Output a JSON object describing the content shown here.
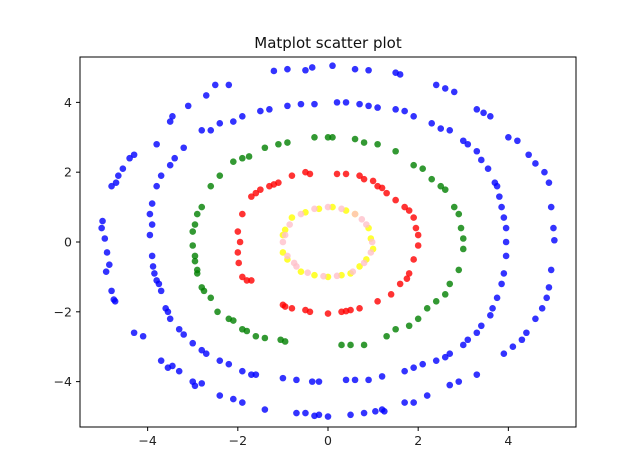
{
  "chart_data": {
    "type": "scatter",
    "title": "Matplot scatter plot",
    "xlabel": "",
    "ylabel": "",
    "xlim": [
      -5.5,
      5.5
    ],
    "ylim": [
      -5.3,
      5.3
    ],
    "xticks": [
      -4,
      -2,
      0,
      2,
      4
    ],
    "yticks": [
      -4,
      -2,
      0,
      2,
      4
    ],
    "xtick_labels": [
      "−4",
      "−2",
      "0",
      "2",
      "4"
    ],
    "ytick_labels": [
      "−4",
      "−2",
      "0",
      "2",
      "4"
    ],
    "grid": false,
    "legend": false,
    "series": [
      {
        "color": "#0000ff",
        "alpha": 0.8,
        "points": [
          [
            -5.0,
            0.6
          ],
          [
            -4.95,
            0.1
          ],
          [
            -4.9,
            -0.3
          ],
          [
            -4.85,
            -0.65
          ],
          [
            -4.8,
            -1.4
          ],
          [
            -4.72,
            -1.7
          ],
          [
            -4.92,
            -0.85
          ],
          [
            -5.02,
            0.4
          ],
          [
            -4.8,
            1.6
          ],
          [
            -4.7,
            1.7
          ],
          [
            -4.65,
            1.9
          ],
          [
            -4.55,
            2.1
          ],
          [
            -4.4,
            2.4
          ],
          [
            -4.3,
            2.5
          ],
          [
            -3.8,
            2.8
          ],
          [
            -3.5,
            3.45
          ],
          [
            -3.45,
            3.6
          ],
          [
            -3.1,
            3.9
          ],
          [
            -2.7,
            4.2
          ],
          [
            -2.5,
            4.5
          ],
          [
            -2.2,
            4.5
          ],
          [
            -1.2,
            4.9
          ],
          [
            -0.9,
            4.95
          ],
          [
            -0.5,
            4.92
          ],
          [
            -0.35,
            5.0
          ],
          [
            0.1,
            5.05
          ],
          [
            0.6,
            4.95
          ],
          [
            0.9,
            4.92
          ],
          [
            1.5,
            4.85
          ],
          [
            1.6,
            4.8
          ],
          [
            2.4,
            4.5
          ],
          [
            2.6,
            4.4
          ],
          [
            2.8,
            4.3
          ],
          [
            3.3,
            3.8
          ],
          [
            3.45,
            3.7
          ],
          [
            3.6,
            3.6
          ],
          [
            4.0,
            3.0
          ],
          [
            4.2,
            2.9
          ],
          [
            4.45,
            2.5
          ],
          [
            4.6,
            2.25
          ],
          [
            4.8,
            2.0
          ],
          [
            4.9,
            1.7
          ],
          [
            4.95,
            1.0
          ],
          [
            5.0,
            0.4
          ],
          [
            5.02,
            0.05
          ],
          [
            4.95,
            -0.8
          ],
          [
            4.9,
            -1.3
          ],
          [
            4.85,
            -1.6
          ],
          [
            4.75,
            -1.9
          ],
          [
            4.6,
            -2.2
          ],
          [
            4.4,
            -2.6
          ],
          [
            4.3,
            -2.8
          ],
          [
            4.1,
            -3.0
          ],
          [
            3.9,
            -3.2
          ],
          [
            3.3,
            -3.8
          ],
          [
            2.9,
            -4.0
          ],
          [
            2.7,
            -4.1
          ],
          [
            2.2,
            -4.4
          ],
          [
            1.9,
            -4.6
          ],
          [
            1.7,
            -4.6
          ],
          [
            1.2,
            -4.8
          ],
          [
            1.05,
            -4.85
          ],
          [
            0.8,
            -4.9
          ],
          [
            0.5,
            -4.95
          ],
          [
            0.0,
            -5.0
          ],
          [
            -0.2,
            -4.95
          ],
          [
            -0.5,
            -4.9
          ],
          [
            -0.7,
            -4.9
          ],
          [
            -1.4,
            -4.8
          ],
          [
            -1.9,
            -4.6
          ],
          [
            -2.1,
            -4.5
          ],
          [
            -2.4,
            -4.4
          ],
          [
            -2.8,
            -4.05
          ],
          [
            -3.0,
            -4.0
          ],
          [
            -3.3,
            -3.7
          ],
          [
            -3.55,
            -3.6
          ],
          [
            -3.7,
            -3.4
          ],
          [
            -4.1,
            -2.7
          ],
          [
            -4.3,
            -2.6
          ],
          [
            -4.75,
            -1.65
          ],
          [
            -3.45,
            -3.55
          ],
          [
            -0.3,
            -4.98
          ],
          [
            1.25,
            -4.85
          ],
          [
            -2.95,
            -4.12
          ]
        ]
      },
      {
        "color": "#0000ff",
        "alpha": 0.8,
        "points": [
          [
            -3.9,
            0.5
          ],
          [
            -3.95,
            0.2
          ],
          [
            -3.9,
            -0.4
          ],
          [
            -3.88,
            -0.7
          ],
          [
            -3.85,
            -0.9
          ],
          [
            -3.8,
            -1.1
          ],
          [
            -3.75,
            -1.2
          ],
          [
            -3.7,
            -1.4
          ],
          [
            -3.6,
            -1.9
          ],
          [
            -3.55,
            -2.0
          ],
          [
            -3.5,
            -2.2
          ],
          [
            -3.3,
            -2.5
          ],
          [
            -3.2,
            -2.65
          ],
          [
            -3.0,
            -2.9
          ],
          [
            -2.8,
            -3.1
          ],
          [
            -2.7,
            -3.2
          ],
          [
            -2.4,
            -3.4
          ],
          [
            -2.2,
            -3.5
          ],
          [
            -1.9,
            -3.7
          ],
          [
            -1.7,
            -3.8
          ],
          [
            -1.6,
            -3.8
          ],
          [
            -1.0,
            -3.9
          ],
          [
            -0.7,
            -3.95
          ],
          [
            -0.35,
            -4.0
          ],
          [
            -0.2,
            -4.0
          ],
          [
            0.4,
            -3.95
          ],
          [
            0.6,
            -3.95
          ],
          [
            0.9,
            -3.95
          ],
          [
            1.2,
            -3.85
          ],
          [
            1.7,
            -3.7
          ],
          [
            1.9,
            -3.6
          ],
          [
            2.1,
            -3.5
          ],
          [
            2.4,
            -3.4
          ],
          [
            2.6,
            -3.3
          ],
          [
            2.7,
            -3.2
          ],
          [
            3.0,
            -2.95
          ],
          [
            3.1,
            -2.8
          ],
          [
            3.3,
            -2.6
          ],
          [
            3.4,
            -2.4
          ],
          [
            3.6,
            -2.1
          ],
          [
            3.65,
            -1.9
          ],
          [
            3.75,
            -1.6
          ],
          [
            3.85,
            -1.2
          ],
          [
            3.9,
            -0.9
          ],
          [
            3.95,
            -0.4
          ],
          [
            3.95,
            0.0
          ],
          [
            3.95,
            0.4
          ],
          [
            3.9,
            0.7
          ],
          [
            3.85,
            1.0
          ],
          [
            3.8,
            1.3
          ],
          [
            3.75,
            1.6
          ],
          [
            3.7,
            1.7
          ],
          [
            3.55,
            2.1
          ],
          [
            3.4,
            2.35
          ],
          [
            3.3,
            2.6
          ],
          [
            3.1,
            2.8
          ],
          [
            3.0,
            2.9
          ],
          [
            2.7,
            3.2
          ],
          [
            2.5,
            3.25
          ],
          [
            2.3,
            3.4
          ],
          [
            1.9,
            3.6
          ],
          [
            1.7,
            3.75
          ],
          [
            1.5,
            3.8
          ],
          [
            1.1,
            3.85
          ],
          [
            0.9,
            3.9
          ],
          [
            0.7,
            3.95
          ],
          [
            0.4,
            4.0
          ],
          [
            0.2,
            4.0
          ],
          [
            -0.3,
            3.95
          ],
          [
            -0.6,
            3.95
          ],
          [
            -0.9,
            3.9
          ],
          [
            -1.3,
            3.8
          ],
          [
            -1.5,
            3.75
          ],
          [
            -1.9,
            3.6
          ],
          [
            -2.1,
            3.45
          ],
          [
            -2.4,
            3.4
          ],
          [
            -2.6,
            3.2
          ],
          [
            -2.8,
            3.2
          ],
          [
            -3.2,
            2.7
          ],
          [
            -3.4,
            2.4
          ],
          [
            -3.5,
            2.2
          ],
          [
            -3.7,
            1.9
          ],
          [
            -3.8,
            1.6
          ],
          [
            -3.9,
            1.1
          ],
          [
            -3.95,
            0.8
          ]
        ]
      },
      {
        "color": "#008000",
        "alpha": 0.8,
        "points": [
          [
            -2.95,
            0.5
          ],
          [
            -3.0,
            0.3
          ],
          [
            -3.0,
            -0.1
          ],
          [
            -2.95,
            -0.4
          ],
          [
            -2.9,
            -0.8
          ],
          [
            -2.9,
            -0.9
          ],
          [
            -2.8,
            -1.3
          ],
          [
            -2.75,
            -1.4
          ],
          [
            -2.6,
            -1.6
          ],
          [
            -2.45,
            -2.0
          ],
          [
            -2.2,
            -2.2
          ],
          [
            -2.1,
            -2.25
          ],
          [
            -1.9,
            -2.5
          ],
          [
            -1.8,
            -2.55
          ],
          [
            -1.6,
            -2.7
          ],
          [
            -1.4,
            -2.75
          ],
          [
            -1.05,
            -2.8
          ],
          [
            -0.95,
            -2.85
          ],
          [
            0.3,
            -2.95
          ],
          [
            0.5,
            -2.95
          ],
          [
            0.8,
            -2.95
          ],
          [
            1.3,
            -2.7
          ],
          [
            1.5,
            -2.5
          ],
          [
            1.8,
            -2.4
          ],
          [
            2.0,
            -2.2
          ],
          [
            2.2,
            -1.9
          ],
          [
            2.4,
            -1.7
          ],
          [
            2.6,
            -1.5
          ],
          [
            2.7,
            -1.2
          ],
          [
            2.9,
            -0.8
          ],
          [
            3.0,
            -0.2
          ],
          [
            3.0,
            0.1
          ],
          [
            2.95,
            0.4
          ],
          [
            2.9,
            0.8
          ],
          [
            2.8,
            1.0
          ],
          [
            2.6,
            1.5
          ],
          [
            2.5,
            1.6
          ],
          [
            2.3,
            1.8
          ],
          [
            2.1,
            2.1
          ],
          [
            1.9,
            2.2
          ],
          [
            1.5,
            2.6
          ],
          [
            1.1,
            2.8
          ],
          [
            0.8,
            2.85
          ],
          [
            0.6,
            2.95
          ],
          [
            0.0,
            3.0
          ],
          [
            0.1,
            3.0
          ],
          [
            -0.3,
            3.0
          ],
          [
            -0.9,
            2.85
          ],
          [
            -1.1,
            2.8
          ],
          [
            -1.4,
            2.7
          ],
          [
            -1.9,
            2.4
          ],
          [
            -2.1,
            2.3
          ],
          [
            -2.4,
            1.9
          ],
          [
            -2.6,
            1.6
          ],
          [
            -2.8,
            1.0
          ],
          [
            -2.9,
            0.8
          ],
          [
            -2.95,
            -0.55
          ],
          [
            -1.75,
            2.45
          ]
        ]
      },
      {
        "color": "#ff0000",
        "alpha": 0.8,
        "points": [
          [
            -2.0,
            0.3
          ],
          [
            -1.95,
            0.0
          ],
          [
            -2.0,
            -0.3
          ],
          [
            -1.98,
            -0.6
          ],
          [
            -1.9,
            -1.0
          ],
          [
            -1.8,
            -1.1
          ],
          [
            -1.7,
            -1.1
          ],
          [
            -1.0,
            -1.8
          ],
          [
            -0.8,
            -1.9
          ],
          [
            -0.5,
            -1.95
          ],
          [
            -0.4,
            -2.0
          ],
          [
            0.0,
            -2.05
          ],
          [
            0.3,
            -2.0
          ],
          [
            0.5,
            -1.95
          ],
          [
            0.7,
            -1.9
          ],
          [
            1.1,
            -1.7
          ],
          [
            1.4,
            -1.5
          ],
          [
            1.6,
            -1.2
          ],
          [
            1.8,
            -0.9
          ],
          [
            1.9,
            -0.5
          ],
          [
            2.0,
            -0.1
          ],
          [
            2.0,
            0.2
          ],
          [
            1.95,
            0.4
          ],
          [
            1.9,
            0.7
          ],
          [
            1.8,
            0.9
          ],
          [
            1.7,
            1.0
          ],
          [
            1.5,
            1.2
          ],
          [
            1.3,
            1.4
          ],
          [
            1.1,
            1.6
          ],
          [
            0.8,
            1.8
          ],
          [
            0.7,
            1.9
          ],
          [
            0.4,
            1.95
          ],
          [
            0.2,
            1.95
          ],
          [
            -0.4,
            1.95
          ],
          [
            -0.5,
            2.0
          ],
          [
            -0.8,
            1.9
          ],
          [
            -1.1,
            1.7
          ],
          [
            -1.3,
            1.6
          ],
          [
            -1.5,
            1.5
          ],
          [
            -1.7,
            1.3
          ],
          [
            -1.9,
            0.8
          ],
          [
            -1.6,
            1.4
          ],
          [
            -1.2,
            1.65
          ],
          [
            1.2,
            1.55
          ],
          [
            1.75,
            -1.05
          ],
          [
            -0.95,
            -1.85
          ],
          [
            0.4,
            -1.98
          ],
          [
            1.0,
            1.75
          ]
        ]
      },
      {
        "color": "#ffff00",
        "alpha": 0.8,
        "points": [
          [
            -1.0,
            -0.3
          ],
          [
            -1.0,
            0.2
          ],
          [
            -0.95,
            0.35
          ],
          [
            -0.9,
            -0.5
          ],
          [
            -0.8,
            0.7
          ],
          [
            -0.6,
            -0.85
          ],
          [
            -0.5,
            0.85
          ],
          [
            -0.3,
            -0.95
          ],
          [
            -0.2,
            0.95
          ],
          [
            0.0,
            -1.0
          ],
          [
            0.1,
            1.0
          ],
          [
            0.3,
            -0.95
          ],
          [
            0.4,
            0.9
          ],
          [
            0.6,
            0.8
          ],
          [
            0.7,
            -0.7
          ],
          [
            0.85,
            -0.5
          ],
          [
            0.9,
            0.4
          ],
          [
            0.95,
            0.1
          ],
          [
            1.0,
            -0.2
          ],
          [
            0.5,
            -0.9
          ]
        ]
      },
      {
        "color": "#ffc0cb",
        "alpha": 0.8,
        "points": [
          [
            -0.95,
            0.2
          ],
          [
            -0.9,
            -0.4
          ],
          [
            -0.85,
            0.5
          ],
          [
            -0.7,
            -0.7
          ],
          [
            -0.6,
            0.8
          ],
          [
            -0.45,
            -0.88
          ],
          [
            -0.3,
            0.95
          ],
          [
            -0.1,
            -0.98
          ],
          [
            0.0,
            1.0
          ],
          [
            0.2,
            -0.97
          ],
          [
            0.3,
            0.95
          ],
          [
            0.55,
            -0.85
          ],
          [
            0.6,
            0.8
          ],
          [
            0.8,
            -0.6
          ],
          [
            0.85,
            0.5
          ],
          [
            0.98,
            0.0
          ],
          [
            0.95,
            -0.3
          ],
          [
            -0.75,
            -0.6
          ],
          [
            -1.0,
            0.0
          ],
          [
            0.75,
            0.65
          ]
        ]
      }
    ]
  }
}
